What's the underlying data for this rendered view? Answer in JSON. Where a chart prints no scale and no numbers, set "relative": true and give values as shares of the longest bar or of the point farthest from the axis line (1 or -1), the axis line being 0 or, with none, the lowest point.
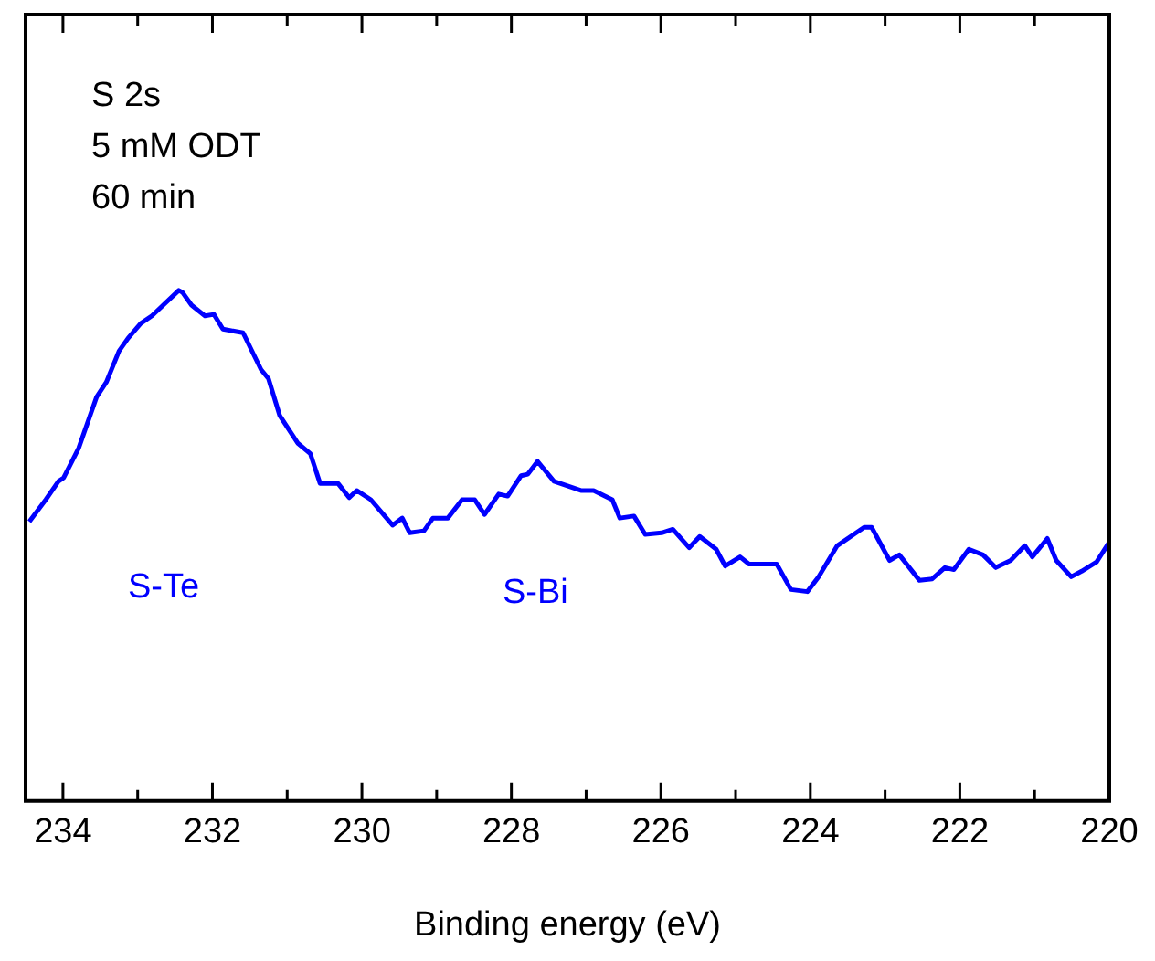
{
  "chart_data": {
    "type": "line",
    "relative": true,
    "xlabel": "Binding energy (eV)",
    "xlim": [
      234.5,
      220
    ],
    "xticks": [
      234,
      {
        "value": 233,
        "label": null
      },
      232,
      {
        "value": 231,
        "label": null
      },
      230,
      {
        "value": 229,
        "label": null
      },
      228,
      {
        "value": 227,
        "label": null
      },
      226,
      {
        "value": 225,
        "label": null
      },
      224,
      {
        "value": 223,
        "label": null
      },
      222,
      {
        "value": 221,
        "label": null
      },
      220
    ],
    "annotations": [
      "S 2s",
      "5 mM ODT",
      "60 min",
      "S-Te",
      "S-Bi"
    ],
    "marker": "none",
    "line_style": "solid",
    "grid": false,
    "legend": false,
    "series": [
      {
        "color": "#0000ff",
        "x": [
          234.45,
          234.23,
          234.06,
          233.99,
          233.79,
          233.55,
          233.42,
          233.25,
          233.13,
          232.96,
          232.81,
          232.45,
          232.4,
          232.28,
          232.1,
          231.98,
          231.86,
          231.59,
          231.35,
          231.25,
          231.1,
          230.86,
          230.69,
          230.56,
          230.32,
          230.17,
          230.07,
          229.88,
          229.59,
          229.46,
          229.36,
          229.17,
          229.05,
          228.85,
          228.66,
          228.49,
          228.36,
          228.17,
          228.05,
          227.87,
          227.78,
          227.65,
          227.43,
          227.07,
          226.9,
          226.65,
          226.55,
          226.36,
          226.21,
          225.99,
          225.84,
          225.62,
          225.48,
          225.26,
          225.14,
          224.94,
          224.82,
          224.45,
          224.26,
          224.04,
          223.89,
          223.64,
          223.28,
          223.18,
          222.94,
          222.81,
          222.54,
          222.37,
          222.2,
          222.08,
          221.88,
          221.69,
          221.52,
          221.32,
          221.13,
          221.03,
          220.83,
          220.71,
          220.51,
          220.37,
          220.17,
          220.0
        ],
        "values": [
          0.547,
          0.59,
          0.626,
          0.633,
          0.691,
          0.791,
          0.82,
          0.881,
          0.906,
          0.935,
          0.95,
          1.0,
          0.996,
          0.971,
          0.95,
          0.953,
          0.924,
          0.917,
          0.845,
          0.827,
          0.755,
          0.701,
          0.68,
          0.622,
          0.622,
          0.594,
          0.608,
          0.59,
          0.54,
          0.554,
          0.525,
          0.529,
          0.554,
          0.554,
          0.59,
          0.59,
          0.561,
          0.601,
          0.597,
          0.637,
          0.64,
          0.665,
          0.626,
          0.608,
          0.608,
          0.59,
          0.554,
          0.558,
          0.522,
          0.525,
          0.532,
          0.496,
          0.518,
          0.493,
          0.46,
          0.478,
          0.464,
          0.464,
          0.414,
          0.41,
          0.439,
          0.5,
          0.536,
          0.536,
          0.471,
          0.482,
          0.432,
          0.435,
          0.457,
          0.453,
          0.493,
          0.482,
          0.457,
          0.471,
          0.5,
          0.478,
          0.514,
          0.471,
          0.439,
          0.45,
          0.468,
          0.507
        ]
      }
    ]
  }
}
